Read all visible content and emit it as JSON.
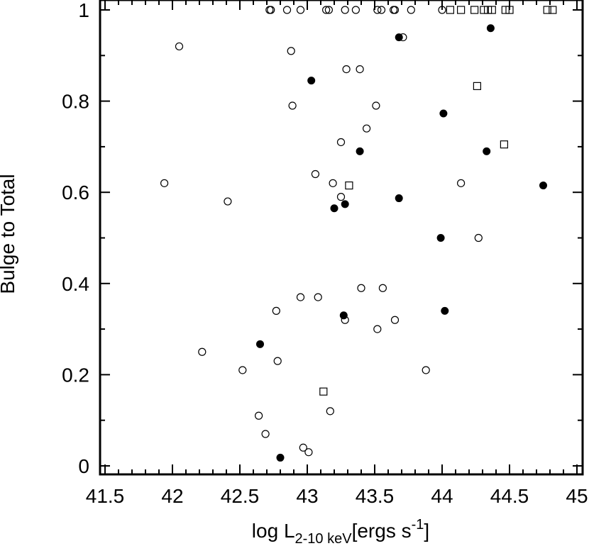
{
  "chart_data": {
    "type": "scatter",
    "title": "",
    "xlabel": {
      "main": "log L",
      "subscript": "2-10 keV",
      "unit_open": "[ergs s",
      "unit_exp": "-1",
      "unit_close": "]"
    },
    "ylabel": "Bulge to Total",
    "xlim": [
      41.5,
      45
    ],
    "ylim": [
      0,
      1
    ],
    "x_ticks": [
      "41.5",
      "42",
      "42.5",
      "43",
      "43.5",
      "44",
      "44.5",
      "45"
    ],
    "y_ticks": [
      "0",
      "0.2",
      "0.4",
      "0.6",
      "0.8",
      "1"
    ],
    "grid": false,
    "series": [
      {
        "marker": "open-circle",
        "points": [
          [
            42.72,
            1.0
          ],
          [
            42.73,
            1.0
          ],
          [
            42.85,
            1.0
          ],
          [
            42.95,
            1.0
          ],
          [
            43.14,
            1.0
          ],
          [
            43.16,
            1.0
          ],
          [
            43.28,
            1.0
          ],
          [
            43.36,
            1.0
          ],
          [
            43.52,
            1.0
          ],
          [
            43.55,
            1.0
          ],
          [
            43.64,
            1.0
          ],
          [
            43.65,
            1.0
          ],
          [
            43.77,
            1.0
          ],
          [
            44.0,
            1.0
          ],
          [
            42.05,
            0.92
          ],
          [
            42.88,
            0.91
          ],
          [
            43.71,
            0.94
          ],
          [
            43.29,
            0.87
          ],
          [
            43.39,
            0.87
          ],
          [
            42.89,
            0.79
          ],
          [
            43.51,
            0.79
          ],
          [
            43.44,
            0.74
          ],
          [
            43.25,
            0.71
          ],
          [
            43.06,
            0.64
          ],
          [
            41.94,
            0.62
          ],
          [
            43.19,
            0.62
          ],
          [
            44.14,
            0.62
          ],
          [
            43.25,
            0.59
          ],
          [
            42.41,
            0.58
          ],
          [
            44.27,
            0.5
          ],
          [
            43.4,
            0.39
          ],
          [
            43.56,
            0.39
          ],
          [
            42.95,
            0.37
          ],
          [
            43.08,
            0.37
          ],
          [
            42.77,
            0.34
          ],
          [
            43.28,
            0.32
          ],
          [
            43.65,
            0.32
          ],
          [
            43.52,
            0.3
          ],
          [
            42.22,
            0.25
          ],
          [
            42.52,
            0.21
          ],
          [
            43.88,
            0.21
          ],
          [
            42.78,
            0.23
          ],
          [
            42.64,
            0.11
          ],
          [
            43.17,
            0.12
          ],
          [
            42.69,
            0.07
          ],
          [
            42.97,
            0.04
          ],
          [
            43.01,
            0.03
          ]
        ]
      },
      {
        "marker": "filled-circle",
        "points": [
          [
            43.68,
            0.94
          ],
          [
            44.36,
            0.96
          ],
          [
            43.03,
            0.845
          ],
          [
            44.01,
            0.773
          ],
          [
            43.39,
            0.69
          ],
          [
            44.33,
            0.69
          ],
          [
            44.75,
            0.615
          ],
          [
            43.68,
            0.587
          ],
          [
            43.28,
            0.574
          ],
          [
            43.2,
            0.565
          ],
          [
            43.99,
            0.5
          ],
          [
            44.02,
            0.34
          ],
          [
            43.27,
            0.33
          ],
          [
            42.65,
            0.267
          ],
          [
            42.8,
            0.018
          ]
        ]
      },
      {
        "marker": "open-square",
        "points": [
          [
            44.06,
            1.0
          ],
          [
            44.14,
            1.0
          ],
          [
            44.24,
            1.0
          ],
          [
            44.31,
            1.0
          ],
          [
            44.34,
            1.0
          ],
          [
            44.37,
            1.0
          ],
          [
            44.47,
            1.0
          ],
          [
            44.5,
            1.0
          ],
          [
            44.78,
            1.0
          ],
          [
            44.82,
            1.0
          ],
          [
            44.26,
            0.833
          ],
          [
            44.46,
            0.705
          ],
          [
            43.31,
            0.615
          ],
          [
            43.12,
            0.163
          ]
        ]
      }
    ]
  }
}
